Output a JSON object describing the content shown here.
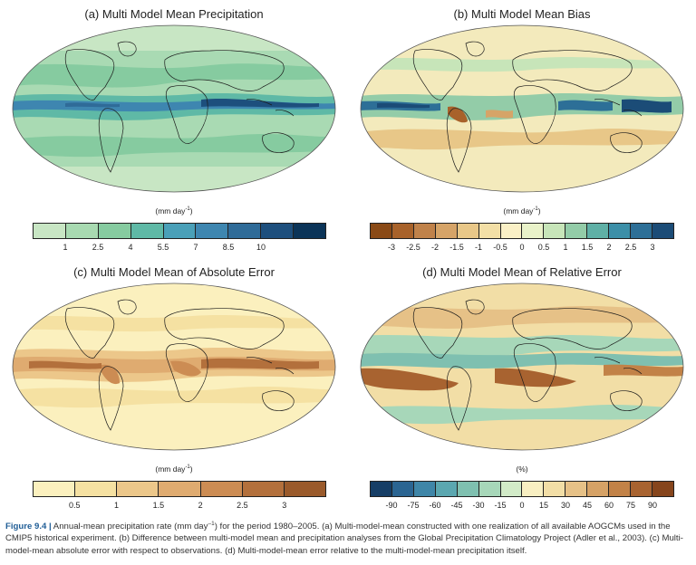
{
  "chart_data": [
    {
      "type": "heatmap",
      "title": "(a) Multi Model Mean Precipitation",
      "units_prefix": "(mm day",
      "units_sup": "-1",
      "units_suffix": ")",
      "colorbar": {
        "ticks": [
          "1",
          "2.5",
          "4",
          "5.5",
          "7",
          "8.5",
          "10"
        ],
        "colors": [
          "#c8e6c4",
          "#a8dab1",
          "#86cba0",
          "#5fb9a6",
          "#4aa0b8",
          "#3e86b0",
          "#2f6b98",
          "#1d4f7d",
          "#0b3458"
        ]
      }
    },
    {
      "type": "heatmap",
      "title": "(b) Multi Model Mean Bias",
      "units_prefix": "(mm day",
      "units_sup": "-1",
      "units_suffix": ")",
      "colorbar": {
        "ticks": [
          "-3",
          "-2.5",
          "-2",
          "-1.5",
          "-1",
          "-0.5",
          "0",
          "0.5",
          "1",
          "1.5",
          "2",
          "2.5",
          "3"
        ],
        "colors": [
          "#8a4a16",
          "#a8622a",
          "#c0824a",
          "#d6a468",
          "#e8c788",
          "#f3dfa6",
          "#faf0c6",
          "#e9f2c9",
          "#c7e5b9",
          "#93cca8",
          "#5fb0a6",
          "#3c8fa8",
          "#2d6f97",
          "#1b4c77"
        ]
      }
    },
    {
      "type": "heatmap",
      "title": "(c) Multi Model Mean of Absolute Error",
      "units_prefix": "(mm day",
      "units_sup": "-1",
      "units_suffix": ")",
      "colorbar": {
        "ticks": [
          "0.5",
          "1",
          "1.5",
          "2",
          "2.5",
          "3"
        ],
        "colors": [
          "#fbf0be",
          "#f5e1a2",
          "#ecc78a",
          "#dfab70",
          "#cc8c53",
          "#b3703c",
          "#9a5a2b"
        ]
      }
    },
    {
      "type": "heatmap",
      "title": "(d) Multi Model Mean of Relative Error",
      "units_prefix": "(%)",
      "units_sup": "",
      "units_suffix": "",
      "colorbar": {
        "ticks": [
          "-90",
          "-75",
          "-60",
          "-45",
          "-30",
          "-15",
          "0",
          "15",
          "30",
          "45",
          "60",
          "75",
          "90"
        ],
        "colors": [
          "#163e66",
          "#2b6592",
          "#3f86a8",
          "#5ba7b0",
          "#7fc0b0",
          "#a7d7b9",
          "#d2ebc8",
          "#f8efc2",
          "#f2dea6",
          "#e6c187",
          "#d6a266",
          "#c28247",
          "#a86330",
          "#86451c"
        ]
      }
    }
  ],
  "caption": {
    "label": "Figure 9.4 |",
    "text_1": " Annual-mean precipitation rate (mm day",
    "sup": "–1",
    "text_2": ") for the period 1980–2005. (a) Multi-model-mean constructed with one realization of all available AOGCMs used in the CMIP5 historical experiment. (b) Difference between multi-model mean and precipitation analyses from the Global Precipitation Climatology Project (Adler et al., 2003). (c) Multi-model-mean absolute error with respect to observations. (d) Multi-model-mean error relative to the multi-model-mean precipitation itself."
  }
}
